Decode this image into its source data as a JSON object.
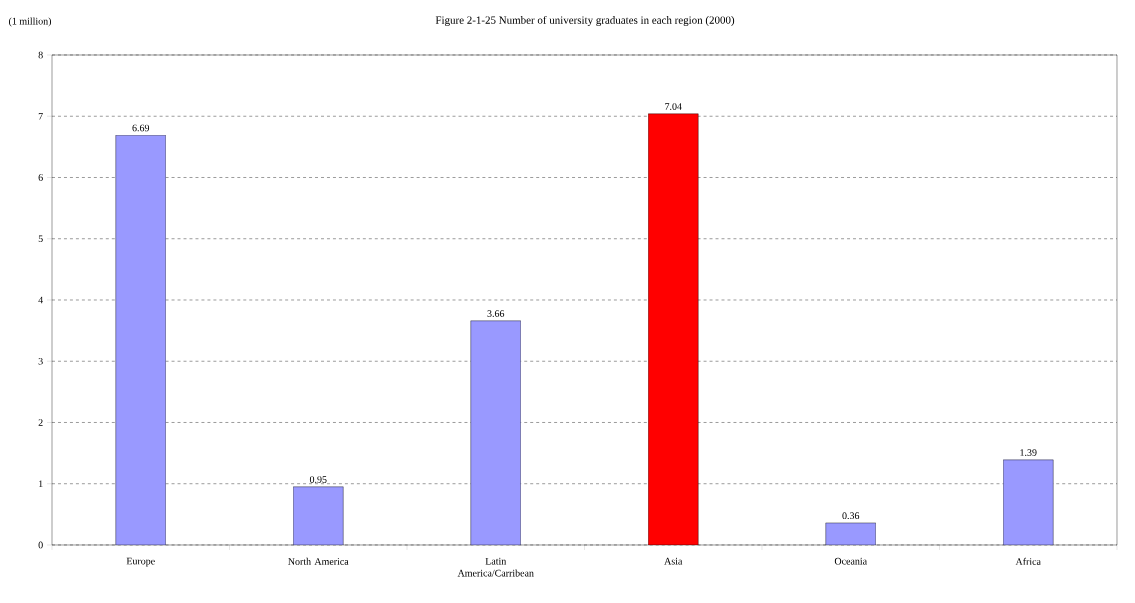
{
  "chart_data": {
    "type": "bar",
    "title": "Figure 2-1-25 Number of university graduates in each region (2000)",
    "ylabel": "(1 million)",
    "categories": [
      "Europe",
      "North America",
      "Latin America/Carribean",
      "Asia",
      "Oceania",
      "Africa"
    ],
    "values": [
      6.69,
      0.95,
      3.66,
      7.04,
      0.36,
      1.39
    ],
    "colors": [
      "#9999ff",
      "#9999ff",
      "#9999ff",
      "#ff0000",
      "#9999ff",
      "#9999ff"
    ],
    "ylim": [
      0,
      8
    ],
    "yticks": [
      0,
      1,
      2,
      3,
      4,
      5,
      6,
      7,
      8
    ],
    "grid": "y",
    "data_labels": true
  }
}
